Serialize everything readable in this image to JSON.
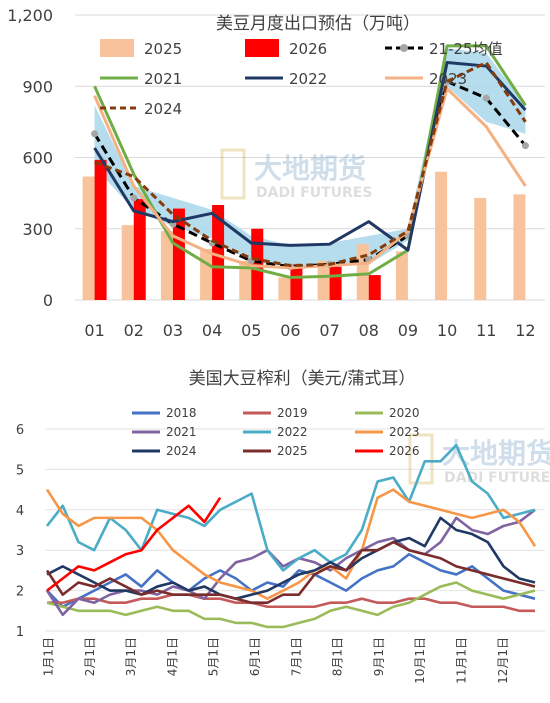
{
  "watermark": {
    "cn": "大地期货",
    "en": "DADI FUTURES"
  },
  "chart_data": [
    {
      "type": "bar+line",
      "title": "美豆月度出口预估（万吨）",
      "categories": [
        "01",
        "02",
        "03",
        "04",
        "05",
        "06",
        "07",
        "08",
        "09",
        "10",
        "11",
        "12"
      ],
      "ylim": [
        0,
        1200
      ],
      "yticks": [
        "0",
        "300",
        "600",
        "900",
        "1,200"
      ],
      "grid": true,
      "legend_position": "top",
      "band": {
        "lower": [
          560,
          380,
          310,
          260,
          160,
          140,
          140,
          150,
          250,
          900,
          750,
          700
        ],
        "upper": [
          820,
          480,
          430,
          380,
          270,
          230,
          240,
          270,
          300,
          1060,
          1040,
          820
        ]
      },
      "bars": [
        {
          "name": "2025",
          "color": "#F8C39A",
          "values": [
            520,
            315,
            290,
            215,
            165,
            95,
            165,
            235,
            205,
            540,
            430,
            445
          ]
        },
        {
          "name": "2026",
          "color": "#FF0000",
          "values": [
            590,
            425,
            385,
            400,
            300,
            150,
            140,
            105,
            null,
            null,
            null,
            null
          ]
        }
      ],
      "series": [
        {
          "name": "21-25均值",
          "color": "#000000",
          "style": "avgdash",
          "values": [
            700,
            430,
            320,
            240,
            165,
            140,
            150,
            170,
            270,
            920,
            850,
            650
          ]
        },
        {
          "name": "2021",
          "color": "#70AD47",
          "style": "solid",
          "values": [
            900,
            530,
            240,
            140,
            135,
            95,
            100,
            110,
            210,
            1070,
            1070,
            820
          ]
        },
        {
          "name": "2022",
          "color": "#203864",
          "style": "solid",
          "values": [
            640,
            375,
            330,
            365,
            240,
            230,
            235,
            330,
            210,
            1000,
            985,
            800
          ]
        },
        {
          "name": "2023",
          "color": "#F4B183",
          "style": "solid",
          "values": [
            860,
            480,
            270,
            195,
            145,
            135,
            145,
            155,
            290,
            890,
            730,
            480
          ]
        },
        {
          "name": "2024",
          "color": "#843C0C",
          "style": "dashed",
          "values": [
            580,
            520,
            360,
            250,
            175,
            145,
            150,
            190,
            290,
            920,
            1000,
            750
          ]
        }
      ]
    },
    {
      "type": "line",
      "title": "美国大豆榨利（美元/蒲式耳）",
      "ylim": [
        1,
        6
      ],
      "yticks": [
        "1",
        "2",
        "3",
        "4",
        "5",
        "6"
      ],
      "xticks": [
        "1月1日",
        "2月1日",
        "3月1日",
        "4月1日",
        "5月1日",
        "6月1日",
        "7月1日",
        "8月1日",
        "9月1日",
        "10月1日",
        "11月1日",
        "12月1日"
      ],
      "grid": true,
      "legend_position": "top",
      "series": [
        {
          "name": "2018",
          "color": "#4472C4",
          "values": [
            2.0,
            1.6,
            1.8,
            2.0,
            2.2,
            2.4,
            2.1,
            2.5,
            2.2,
            2.0,
            2.3,
            2.5,
            2.3,
            2.0,
            2.2,
            2.1,
            2.5,
            2.4,
            2.2,
            2.0,
            2.3,
            2.5,
            2.6,
            2.9,
            2.7,
            2.5,
            2.4,
            2.6,
            2.3,
            2.0,
            1.9,
            1.8
          ]
        },
        {
          "name": "2019",
          "color": "#C55A5A",
          "values": [
            1.7,
            1.7,
            1.8,
            1.8,
            1.7,
            1.7,
            1.8,
            1.8,
            1.9,
            1.9,
            1.8,
            1.8,
            1.7,
            1.7,
            1.6,
            1.6,
            1.6,
            1.6,
            1.7,
            1.7,
            1.8,
            1.7,
            1.7,
            1.8,
            1.8,
            1.7,
            1.7,
            1.6,
            1.6,
            1.6,
            1.5,
            1.5
          ]
        },
        {
          "name": "2020",
          "color": "#9BBB59",
          "values": [
            1.7,
            1.6,
            1.5,
            1.5,
            1.5,
            1.4,
            1.5,
            1.6,
            1.5,
            1.5,
            1.3,
            1.3,
            1.2,
            1.2,
            1.1,
            1.1,
            1.2,
            1.3,
            1.5,
            1.6,
            1.5,
            1.4,
            1.6,
            1.7,
            1.9,
            2.1,
            2.2,
            2.0,
            1.9,
            1.8,
            1.9,
            2.0
          ]
        },
        {
          "name": "2021",
          "color": "#8064A2",
          "values": [
            2.0,
            1.4,
            1.8,
            1.7,
            1.9,
            2.0,
            2.0,
            1.9,
            2.1,
            2.0,
            1.8,
            2.3,
            2.7,
            2.8,
            3.0,
            2.6,
            2.8,
            2.7,
            2.5,
            2.8,
            3.0,
            3.2,
            3.3,
            3.0,
            2.9,
            3.2,
            3.8,
            3.5,
            3.4,
            3.6,
            3.7,
            4.0
          ]
        },
        {
          "name": "2022",
          "color": "#4BACC6",
          "values": [
            3.6,
            4.1,
            3.2,
            3.0,
            3.8,
            3.5,
            3.0,
            4.0,
            3.9,
            3.8,
            3.6,
            4.0,
            4.2,
            4.4,
            3.0,
            2.5,
            2.8,
            3.0,
            2.7,
            2.9,
            3.5,
            4.7,
            4.8,
            4.2,
            5.2,
            5.2,
            5.6,
            4.7,
            4.4,
            3.8,
            3.9,
            4.0
          ]
        },
        {
          "name": "2023",
          "color": "#F79646",
          "values": [
            4.5,
            3.9,
            3.6,
            3.8,
            3.8,
            3.8,
            3.8,
            3.5,
            3.0,
            2.7,
            2.4,
            2.2,
            2.1,
            2.0,
            1.8,
            2.0,
            2.2,
            2.5,
            2.6,
            2.3,
            3.0,
            4.3,
            4.5,
            4.2,
            4.1,
            4.0,
            3.9,
            3.8,
            3.9,
            4.0,
            3.7,
            3.1
          ]
        },
        {
          "name": "2024",
          "color": "#1F3864",
          "values": [
            2.4,
            2.6,
            2.4,
            2.2,
            2.0,
            2.0,
            1.9,
            2.1,
            2.2,
            2.0,
            2.1,
            1.9,
            1.8,
            1.9,
            2.0,
            2.2,
            2.4,
            2.5,
            2.7,
            2.5,
            2.8,
            3.0,
            3.2,
            3.3,
            3.1,
            3.8,
            3.5,
            3.4,
            3.2,
            2.6,
            2.3,
            2.2
          ]
        },
        {
          "name": "2025",
          "color": "#7B2C2C",
          "values": [
            2.5,
            1.9,
            2.2,
            2.1,
            2.3,
            2.1,
            1.9,
            2.0,
            1.9,
            1.9,
            1.9,
            1.9,
            1.8,
            1.7,
            1.7,
            1.9,
            1.9,
            2.4,
            2.6,
            2.5,
            3.0,
            3.0,
            3.2,
            3.0,
            2.9,
            2.8,
            2.6,
            2.5,
            2.4,
            2.3,
            2.2,
            2.1
          ]
        },
        {
          "name": "2026",
          "color": "#FF0000",
          "values": [
            2.0,
            2.3,
            2.6,
            2.5,
            2.7,
            2.9,
            3.0,
            3.5,
            3.8,
            4.1,
            3.7,
            4.3
          ]
        }
      ]
    }
  ]
}
